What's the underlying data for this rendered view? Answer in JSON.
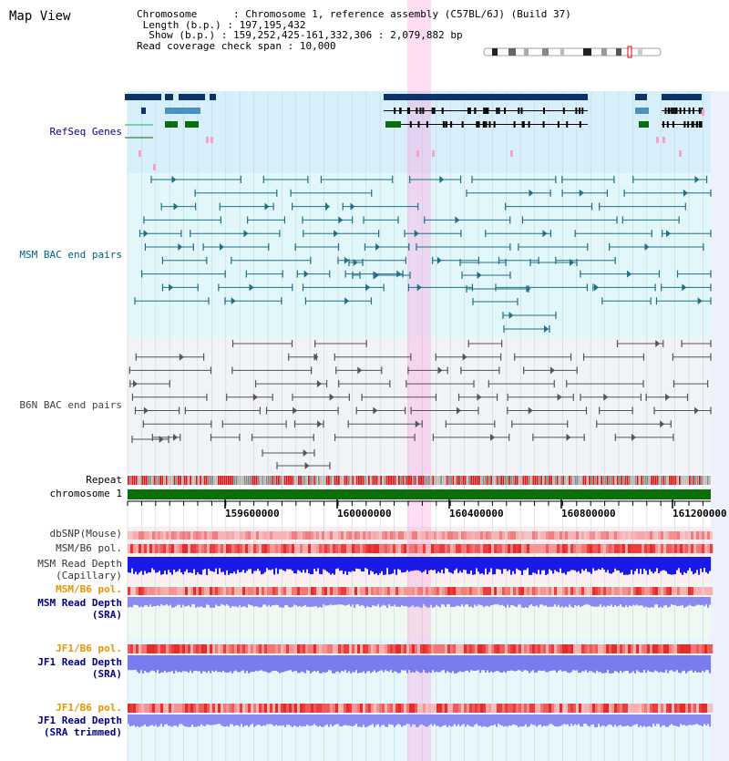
{
  "app": {
    "title": "Map View"
  },
  "info": {
    "chromosome": {
      "label": "Chromosome",
      "value": "Chromosome 1, reference assembly (C57BL/6J) (Build 37)"
    },
    "length": {
      "label": "Length (b.p.)",
      "value": "197,195,432"
    },
    "show": {
      "label": "Show (b.p.)",
      "value": "159,252,425-161,332,306 : 2,079,882 bp"
    },
    "span": {
      "label": "Read coverage check span",
      "value": "10,000"
    }
  },
  "tracks": {
    "refseq": {
      "label": "RefSeq Genes",
      "color": "#00008b"
    },
    "msm_bac": {
      "label": "MSM BAC end pairs",
      "color": "#006080"
    },
    "b6n_bac": {
      "label": "B6N BAC end pairs",
      "color": "#444444"
    },
    "repeat": {
      "label": "Repeat"
    },
    "chromosome": {
      "label": "chromosome 1"
    },
    "dbsnp": {
      "label": "dbSNP(Mouse)"
    },
    "msm_pol": {
      "label": "MSM/B6 pol."
    },
    "msm_depth_cap": {
      "label1": "MSM Read Depth",
      "label2": "(Capillary)"
    },
    "msm_pol_sra": {
      "label": "MSM/B6 pol.",
      "color": "#e69500"
    },
    "msm_depth_sra": {
      "label1": "MSM Read Depth",
      "label2": "(SRA)",
      "color": "#00008b"
    },
    "jf1_pol": {
      "label": "JF1/B6 pol.",
      "color": "#e69500"
    },
    "jf1_depth": {
      "label1": "JF1 Read Depth",
      "label2": "(SRA)",
      "color": "#00008b"
    },
    "jf1_pol2": {
      "label": "JF1/B6 pol.",
      "color": "#e69500"
    },
    "jf1_depth_trim": {
      "label1": "JF1 Read Depth",
      "label2": "(SRA trimmed)",
      "color": "#00008b"
    }
  },
  "axis": {
    "ticks": [
      "159600000",
      "160000000",
      "160400000",
      "160800000",
      "161200000"
    ]
  }
}
